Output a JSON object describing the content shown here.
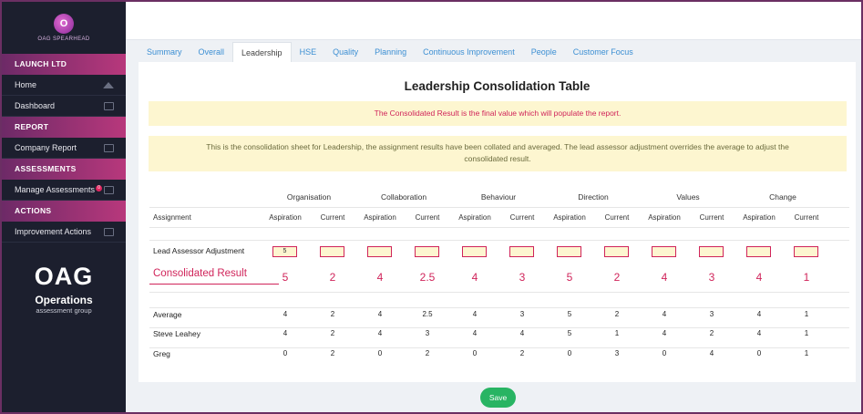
{
  "brand": {
    "name": "OAG SPEARHEAD",
    "initial": "O"
  },
  "sidebar": {
    "sections": [
      {
        "title": "LAUNCH LTD",
        "items": [
          {
            "label": "Home",
            "icon": "home-icon"
          },
          {
            "label": "Dashboard",
            "icon": "monitor-icon"
          }
        ]
      },
      {
        "title": "REPORT",
        "items": [
          {
            "label": "Company Report",
            "icon": "table-icon"
          }
        ]
      },
      {
        "title": "ASSESSMENTS",
        "items": [
          {
            "label": "Manage Assessments",
            "icon": "table-icon",
            "badge": "0"
          }
        ]
      },
      {
        "title": "ACTIONS",
        "items": [
          {
            "label": "Improvement Actions",
            "icon": "table-icon"
          }
        ]
      }
    ],
    "logo": {
      "mark": "OAG",
      "name": "Operations",
      "tagline": "assessment group"
    }
  },
  "tabs": [
    "Summary",
    "Overall",
    "Leadership",
    "HSE",
    "Quality",
    "Planning",
    "Continuous Improvement",
    "People",
    "Customer Focus"
  ],
  "active_tab": "Leadership",
  "page": {
    "title": "Leadership Consolidation Table",
    "note_final": "The Consolidated Result is the final value which will populate the report.",
    "note_info": "This is the consolidation sheet for Leadership, the assignment results have been collated and averaged. The lead assessor adjustment overrides the average to adjust the consolidated result."
  },
  "table": {
    "assignment_header": "Assignment",
    "groups": [
      "Organisation",
      "Collaboration",
      "Behaviour",
      "Direction",
      "Values",
      "Change"
    ],
    "sub_headers": [
      "Aspiration",
      "Current"
    ],
    "adjustment_label": "Lead Assessor Adjustment",
    "adjustment_values": [
      "5",
      "",
      "",
      "",
      "",
      "",
      "",
      "",
      "",
      "",
      "",
      ""
    ],
    "consolidated_label": "Consolidated Result",
    "consolidated_values": [
      "5",
      "2",
      "4",
      "2.5",
      "4",
      "3",
      "5",
      "2",
      "4",
      "3",
      "4",
      "1"
    ],
    "rows": [
      {
        "name": "Average",
        "values": [
          "4",
          "2",
          "4",
          "2.5",
          "4",
          "3",
          "5",
          "2",
          "4",
          "3",
          "4",
          "1"
        ]
      },
      {
        "name": "Steve Leahey",
        "values": [
          "4",
          "2",
          "4",
          "3",
          "4",
          "4",
          "5",
          "1",
          "4",
          "2",
          "4",
          "1"
        ]
      },
      {
        "name": "Greg",
        "values": [
          "0",
          "2",
          "0",
          "2",
          "0",
          "2",
          "0",
          "3",
          "0",
          "4",
          "0",
          "1"
        ]
      }
    ]
  },
  "save_label": "Save",
  "colors": {
    "accent": "#d0245a",
    "sidebar": "#1c1f2e",
    "section": "#b8387c",
    "save": "#28b463",
    "link": "#3c8fd3"
  }
}
